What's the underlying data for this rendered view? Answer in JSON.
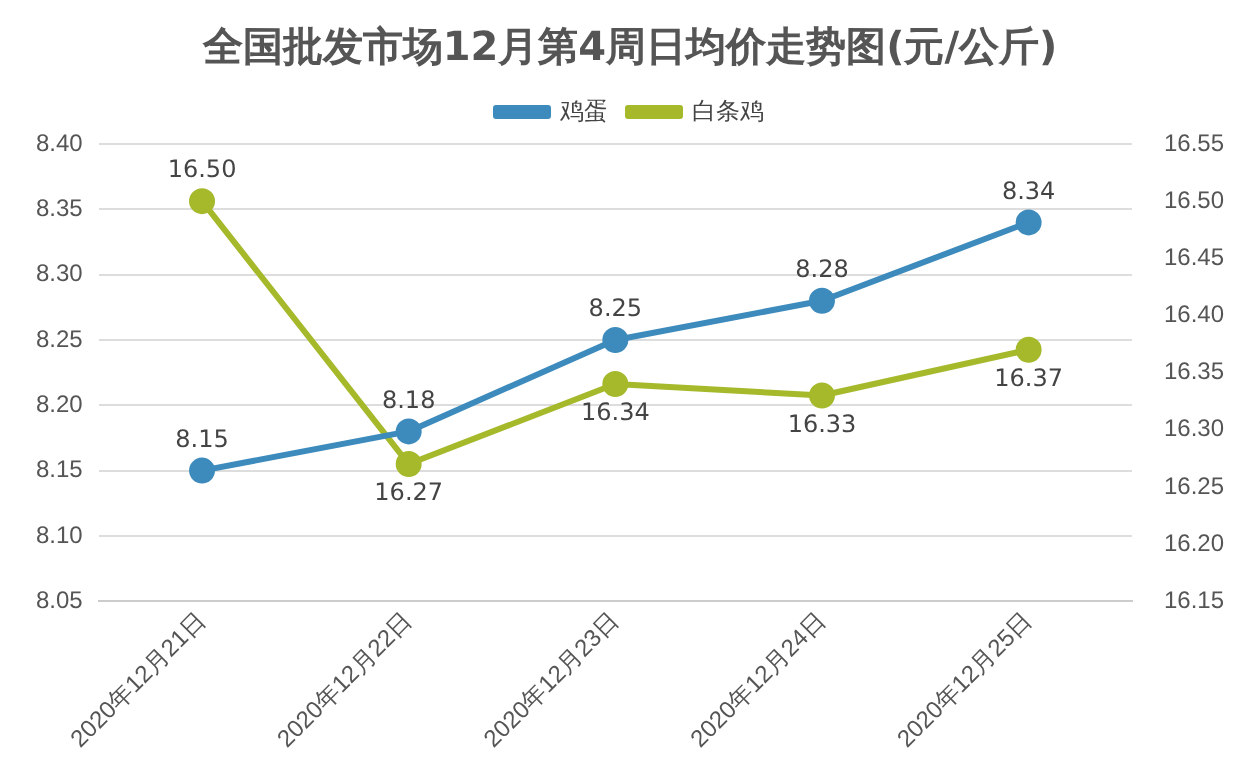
{
  "chart_data": {
    "type": "line",
    "title": "全国批发市场12月第4周日均价走势图(元/公斤)",
    "categories": [
      "2020年12月21日",
      "2020年12月22日",
      "2020年12月23日",
      "2020年12月24日",
      "2020年12月25日"
    ],
    "series": [
      {
        "name": "鸡蛋",
        "color": "#3d8bbd",
        "values": [
          8.15,
          8.18,
          8.25,
          8.28,
          8.34
        ],
        "value_labels": [
          "8.15",
          "8.18",
          "8.25",
          "8.28",
          "8.34"
        ]
      },
      {
        "name": "白条鸡",
        "color": "#a5b92b",
        "values": [
          16.5,
          16.27,
          16.34,
          16.33,
          16.37
        ],
        "value_labels": [
          "16.50",
          "16.27",
          "16.34",
          "16.33",
          "16.37"
        ],
        "axis": "y2"
      }
    ],
    "ylim": [
      8.05,
      8.4
    ],
    "yticks": [
      {
        "value": 8.05,
        "label": "8.05"
      },
      {
        "value": 8.1,
        "label": "8.10"
      },
      {
        "value": 8.15,
        "label": "8.15"
      },
      {
        "value": 8.2,
        "label": "8.20"
      },
      {
        "value": 8.25,
        "label": "8.25"
      },
      {
        "value": 8.3,
        "label": "8.30"
      },
      {
        "value": 8.35,
        "label": "8.35"
      },
      {
        "value": 8.4,
        "label": "8.40"
      }
    ],
    "y2lim": [
      16.15,
      16.55
    ],
    "y2ticks": [
      {
        "value": 16.15,
        "label": "16.15"
      },
      {
        "value": 16.2,
        "label": "16.20"
      },
      {
        "value": 16.25,
        "label": "16.25"
      },
      {
        "value": 16.3,
        "label": "16.30"
      },
      {
        "value": 16.35,
        "label": "16.35"
      },
      {
        "value": 16.4,
        "label": "16.40"
      },
      {
        "value": 16.45,
        "label": "16.45"
      },
      {
        "value": 16.5,
        "label": "16.50"
      },
      {
        "value": 16.55,
        "label": "16.55"
      }
    ],
    "grid": "y",
    "legend": "top",
    "marker": "circle",
    "line_style": "solid"
  }
}
